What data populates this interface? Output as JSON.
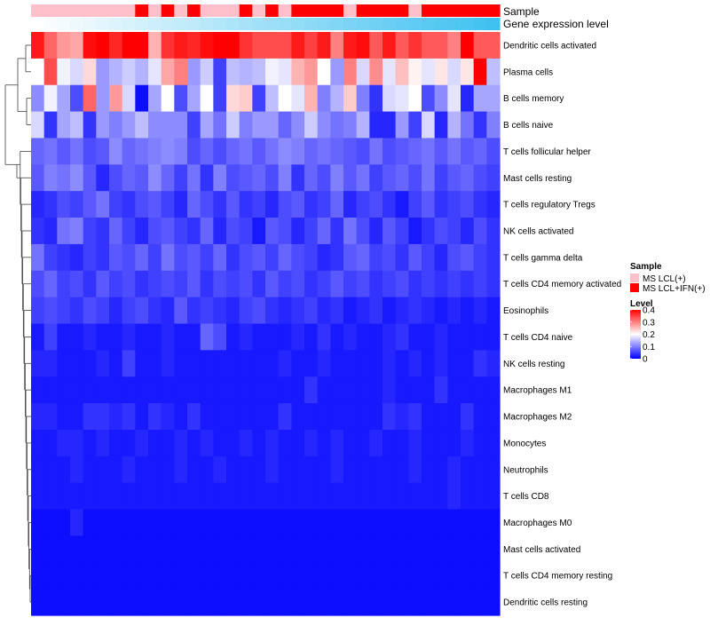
{
  "chart_data": {
    "type": "heatmap",
    "title": "",
    "annotations": {
      "sample": {
        "label": "Sample",
        "values": [
          "MS LCL(+)",
          "MS LCL(+)",
          "MS LCL(+)",
          "MS LCL(+)",
          "MS LCL(+)",
          "MS LCL(+)",
          "MS LCL(+)",
          "MS LCL(+)",
          "MS LCL+IFN(+)",
          "MS LCL(+)",
          "MS LCL+IFN(+)",
          "MS LCL(+)",
          "MS LCL+IFN(+)",
          "MS LCL(+)",
          "MS LCL(+)",
          "MS LCL(+)",
          "MS LCL+IFN(+)",
          "MS LCL(+)",
          "MS LCL+IFN(+)",
          "MS LCL(+)",
          "MS LCL+IFN(+)",
          "MS LCL+IFN(+)",
          "MS LCL+IFN(+)",
          "MS LCL+IFN(+)",
          "MS LCL(+)",
          "MS LCL+IFN(+)",
          "MS LCL+IFN(+)",
          "MS LCL+IFN(+)",
          "MS LCL+IFN(+)",
          "MS LCL(+)",
          "MS LCL+IFN(+)",
          "MS LCL+IFN(+)",
          "MS LCL+IFN(+)",
          "MS LCL+IFN(+)",
          "MS LCL+IFN(+)",
          "MS LCL+IFN(+)"
        ]
      },
      "gene_expression": {
        "label": "Gene expression level",
        "values": [
          0.0,
          0.03,
          0.06,
          0.09,
          0.11,
          0.14,
          0.17,
          0.2,
          0.23,
          0.26,
          0.29,
          0.31,
          0.34,
          0.37,
          0.4,
          0.43,
          0.46,
          0.49,
          0.51,
          0.54,
          0.57,
          0.6,
          0.63,
          0.66,
          0.69,
          0.71,
          0.74,
          0.77,
          0.8,
          0.83,
          0.86,
          0.89,
          0.91,
          0.94,
          0.97,
          1.0
        ]
      }
    },
    "legend": {
      "position": "right",
      "sample_title": "Sample",
      "sample_items": [
        {
          "label": "MS LCL(+)",
          "color": "#ffc0cb"
        },
        {
          "label": "MS LCL+IFN(+)",
          "color": "#ff0000"
        }
      ],
      "level_title": "Level",
      "level_ticks": [
        "0.4",
        "0.3",
        "0.2",
        "0.1",
        "0"
      ],
      "range": [
        0,
        0.4
      ]
    },
    "colors": {
      "low": "#0000ff",
      "mid": "#ffffff",
      "high": "#ff0000",
      "gene_low": "#ffffff",
      "gene_high": "#3fc1f0"
    },
    "rows": [
      "Dendritic cells activated",
      "Plasma cells",
      "B cells memory",
      "B cells naive",
      "T cells follicular helper",
      "Mast cells resting",
      "T cells regulatory  Tregs",
      "NK cells activated",
      "T cells gamma delta",
      "T cells CD4 memory activated",
      "Eosinophils",
      "T cells CD4 naive",
      "NK cells resting",
      "Macrophages M1",
      "Macrophages M2",
      "Monocytes",
      "Neutrophils",
      "T cells CD8",
      "Macrophages M0",
      "Mast cells activated",
      "T cells CD4 memory resting",
      "Dendritic cells resting"
    ],
    "values": [
      [
        0.38,
        0.32,
        0.28,
        0.27,
        0.39,
        0.4,
        0.37,
        0.4,
        0.4,
        0.26,
        0.36,
        0.38,
        0.37,
        0.39,
        0.4,
        0.4,
        0.36,
        0.34,
        0.34,
        0.34,
        0.38,
        0.35,
        0.38,
        0.3,
        0.38,
        0.39,
        0.33,
        0.38,
        0.33,
        0.36,
        0.33,
        0.33,
        0.3,
        0.4,
        0.33,
        0.33
      ],
      [
        0.2,
        0.34,
        0.19,
        0.17,
        0.23,
        0.12,
        0.14,
        0.16,
        0.14,
        0.18,
        0.27,
        0.3,
        0.12,
        0.16,
        0.05,
        0.15,
        0.14,
        0.15,
        0.19,
        0.18,
        0.26,
        0.28,
        0.2,
        0.12,
        0.3,
        0.17,
        0.29,
        0.18,
        0.25,
        0.21,
        0.18,
        0.22,
        0.17,
        0.22,
        0.4,
        0.15
      ],
      [
        0.11,
        0.19,
        0.13,
        0.06,
        0.32,
        0.12,
        0.28,
        0.17,
        0.01,
        0.13,
        0.2,
        0.06,
        0.13,
        0.2,
        0.05,
        0.23,
        0.24,
        0.05,
        0.15,
        0.2,
        0.18,
        0.26,
        0.1,
        0.14,
        0.24,
        0.1,
        0.04,
        0.17,
        0.18,
        0.2,
        0.06,
        0.11,
        0.18,
        0.03,
        0.13,
        0.13
      ],
      [
        0.17,
        0.04,
        0.13,
        0.15,
        0.04,
        0.12,
        0.1,
        0.12,
        0.15,
        0.11,
        0.11,
        0.11,
        0.05,
        0.13,
        0.09,
        0.16,
        0.1,
        0.12,
        0.12,
        0.08,
        0.11,
        0.16,
        0.11,
        0.09,
        0.1,
        0.14,
        0.03,
        0.03,
        0.12,
        0.05,
        0.17,
        0.03,
        0.14,
        0.09,
        0.04,
        0.1
      ],
      [
        0.08,
        0.09,
        0.07,
        0.09,
        0.06,
        0.07,
        0.11,
        0.08,
        0.09,
        0.1,
        0.11,
        0.1,
        0.06,
        0.08,
        0.06,
        0.08,
        0.09,
        0.07,
        0.09,
        0.11,
        0.1,
        0.08,
        0.09,
        0.08,
        0.07,
        0.06,
        0.09,
        0.06,
        0.07,
        0.08,
        0.09,
        0.07,
        0.09,
        0.07,
        0.08,
        0.06
      ],
      [
        0.07,
        0.1,
        0.09,
        0.11,
        0.07,
        0.03,
        0.06,
        0.08,
        0.07,
        0.11,
        0.08,
        0.05,
        0.09,
        0.04,
        0.1,
        0.06,
        0.07,
        0.08,
        0.06,
        0.1,
        0.04,
        0.08,
        0.06,
        0.1,
        0.07,
        0.09,
        0.05,
        0.07,
        0.08,
        0.06,
        0.09,
        0.05,
        0.07,
        0.08,
        0.06,
        0.05
      ],
      [
        0.03,
        0.04,
        0.06,
        0.05,
        0.07,
        0.09,
        0.05,
        0.04,
        0.06,
        0.07,
        0.05,
        0.03,
        0.08,
        0.06,
        0.04,
        0.07,
        0.04,
        0.05,
        0.03,
        0.06,
        0.07,
        0.04,
        0.05,
        0.08,
        0.03,
        0.05,
        0.06,
        0.04,
        0.02,
        0.05,
        0.07,
        0.04,
        0.05,
        0.06,
        0.04,
        0.03
      ],
      [
        0.04,
        0.03,
        0.09,
        0.1,
        0.05,
        0.04,
        0.08,
        0.05,
        0.03,
        0.06,
        0.07,
        0.05,
        0.04,
        0.08,
        0.03,
        0.06,
        0.05,
        0.02,
        0.07,
        0.06,
        0.03,
        0.05,
        0.08,
        0.04,
        0.09,
        0.06,
        0.03,
        0.07,
        0.05,
        0.02,
        0.04,
        0.06,
        0.05,
        0.03,
        0.06,
        0.04
      ],
      [
        0.09,
        0.05,
        0.04,
        0.03,
        0.05,
        0.04,
        0.07,
        0.06,
        0.08,
        0.05,
        0.09,
        0.06,
        0.07,
        0.05,
        0.08,
        0.04,
        0.06,
        0.07,
        0.05,
        0.08,
        0.06,
        0.05,
        0.03,
        0.04,
        0.07,
        0.08,
        0.05,
        0.06,
        0.04,
        0.07,
        0.05,
        0.03,
        0.06,
        0.07,
        0.05,
        0.04
      ],
      [
        0.06,
        0.08,
        0.05,
        0.06,
        0.04,
        0.07,
        0.05,
        0.06,
        0.04,
        0.05,
        0.06,
        0.05,
        0.07,
        0.04,
        0.06,
        0.05,
        0.06,
        0.04,
        0.07,
        0.05,
        0.06,
        0.04,
        0.05,
        0.07,
        0.05,
        0.06,
        0.04,
        0.05,
        0.06,
        0.04,
        0.05,
        0.04,
        0.05,
        0.04,
        0.05,
        0.04
      ],
      [
        0.05,
        0.06,
        0.05,
        0.04,
        0.06,
        0.05,
        0.03,
        0.05,
        0.06,
        0.04,
        0.03,
        0.07,
        0.04,
        0.05,
        0.04,
        0.03,
        0.05,
        0.06,
        0.04,
        0.03,
        0.04,
        0.05,
        0.03,
        0.04,
        0.02,
        0.03,
        0.04,
        0.02,
        0.03,
        0.04,
        0.03,
        0.02,
        0.03,
        0.02,
        0.03,
        0.02
      ],
      [
        0.02,
        0.05,
        0.02,
        0.02,
        0.03,
        0.02,
        0.02,
        0.03,
        0.02,
        0.02,
        0.03,
        0.02,
        0.02,
        0.08,
        0.06,
        0.02,
        0.03,
        0.02,
        0.02,
        0.02,
        0.03,
        0.02,
        0.04,
        0.02,
        0.03,
        0.02,
        0.02,
        0.03,
        0.04,
        0.02,
        0.02,
        0.03,
        0.02,
        0.02,
        0.02,
        0.02
      ],
      [
        0.03,
        0.03,
        0.02,
        0.02,
        0.02,
        0.03,
        0.02,
        0.05,
        0.02,
        0.02,
        0.03,
        0.02,
        0.02,
        0.02,
        0.02,
        0.02,
        0.02,
        0.02,
        0.02,
        0.03,
        0.02,
        0.02,
        0.03,
        0.02,
        0.02,
        0.02,
        0.02,
        0.03,
        0.02,
        0.03,
        0.02,
        0.03,
        0.02,
        0.02,
        0.04,
        0.03
      ],
      [
        0.02,
        0.02,
        0.02,
        0.02,
        0.02,
        0.02,
        0.02,
        0.02,
        0.02,
        0.02,
        0.02,
        0.02,
        0.02,
        0.02,
        0.02,
        0.02,
        0.02,
        0.02,
        0.02,
        0.02,
        0.02,
        0.04,
        0.02,
        0.02,
        0.02,
        0.02,
        0.02,
        0.03,
        0.02,
        0.02,
        0.02,
        0.04,
        0.02,
        0.02,
        0.02,
        0.02
      ],
      [
        0.03,
        0.03,
        0.02,
        0.02,
        0.04,
        0.04,
        0.03,
        0.04,
        0.02,
        0.04,
        0.03,
        0.02,
        0.04,
        0.02,
        0.02,
        0.02,
        0.02,
        0.02,
        0.02,
        0.04,
        0.02,
        0.02,
        0.02,
        0.02,
        0.02,
        0.02,
        0.02,
        0.04,
        0.03,
        0.04,
        0.02,
        0.02,
        0.02,
        0.04,
        0.02,
        0.02
      ],
      [
        0.02,
        0.02,
        0.03,
        0.03,
        0.02,
        0.03,
        0.02,
        0.02,
        0.03,
        0.02,
        0.02,
        0.03,
        0.02,
        0.03,
        0.02,
        0.02,
        0.03,
        0.02,
        0.03,
        0.02,
        0.02,
        0.03,
        0.02,
        0.03,
        0.02,
        0.02,
        0.03,
        0.02,
        0.02,
        0.03,
        0.02,
        0.02,
        0.02,
        0.03,
        0.02,
        0.02
      ],
      [
        0.02,
        0.02,
        0.02,
        0.03,
        0.02,
        0.02,
        0.02,
        0.03,
        0.02,
        0.02,
        0.02,
        0.03,
        0.02,
        0.02,
        0.03,
        0.02,
        0.02,
        0.02,
        0.03,
        0.02,
        0.02,
        0.02,
        0.02,
        0.03,
        0.02,
        0.02,
        0.02,
        0.02,
        0.02,
        0.03,
        0.02,
        0.02,
        0.03,
        0.02,
        0.02,
        0.02
      ],
      [
        0.02,
        0.02,
        0.02,
        0.02,
        0.02,
        0.02,
        0.02,
        0.02,
        0.02,
        0.02,
        0.02,
        0.02,
        0.02,
        0.02,
        0.02,
        0.02,
        0.02,
        0.02,
        0.02,
        0.02,
        0.02,
        0.02,
        0.02,
        0.02,
        0.02,
        0.02,
        0.02,
        0.02,
        0.02,
        0.02,
        0.02,
        0.02,
        0.03,
        0.02,
        0.02,
        0.02
      ],
      [
        0.01,
        0.01,
        0.01,
        0.03,
        0.01,
        0.01,
        0.01,
        0.01,
        0.01,
        0.01,
        0.01,
        0.01,
        0.01,
        0.01,
        0.01,
        0.01,
        0.01,
        0.01,
        0.01,
        0.01,
        0.01,
        0.01,
        0.01,
        0.01,
        0.01,
        0.01,
        0.01,
        0.01,
        0.01,
        0.01,
        0.01,
        0.01,
        0.01,
        0.01,
        0.01,
        0.01
      ],
      [
        0.01,
        0.01,
        0.01,
        0.01,
        0.01,
        0.01,
        0.01,
        0.01,
        0.01,
        0.01,
        0.01,
        0.01,
        0.01,
        0.01,
        0.01,
        0.01,
        0.01,
        0.01,
        0.01,
        0.01,
        0.01,
        0.01,
        0.01,
        0.01,
        0.01,
        0.01,
        0.01,
        0.01,
        0.01,
        0.01,
        0.01,
        0.01,
        0.01,
        0.01,
        0.01,
        0.01
      ],
      [
        0.01,
        0.01,
        0.01,
        0.01,
        0.01,
        0.01,
        0.01,
        0.01,
        0.01,
        0.01,
        0.01,
        0.01,
        0.01,
        0.01,
        0.01,
        0.01,
        0.01,
        0.01,
        0.01,
        0.01,
        0.01,
        0.01,
        0.01,
        0.01,
        0.01,
        0.01,
        0.01,
        0.01,
        0.01,
        0.01,
        0.01,
        0.01,
        0.01,
        0.01,
        0.01,
        0.01
      ],
      [
        0.01,
        0.01,
        0.01,
        0.01,
        0.01,
        0.01,
        0.01,
        0.01,
        0.01,
        0.01,
        0.01,
        0.01,
        0.01,
        0.01,
        0.01,
        0.01,
        0.01,
        0.01,
        0.01,
        0.01,
        0.01,
        0.01,
        0.01,
        0.01,
        0.01,
        0.01,
        0.01,
        0.01,
        0.01,
        0.01,
        0.01,
        0.01,
        0.01,
        0.01,
        0.01,
        0.01
      ]
    ]
  }
}
